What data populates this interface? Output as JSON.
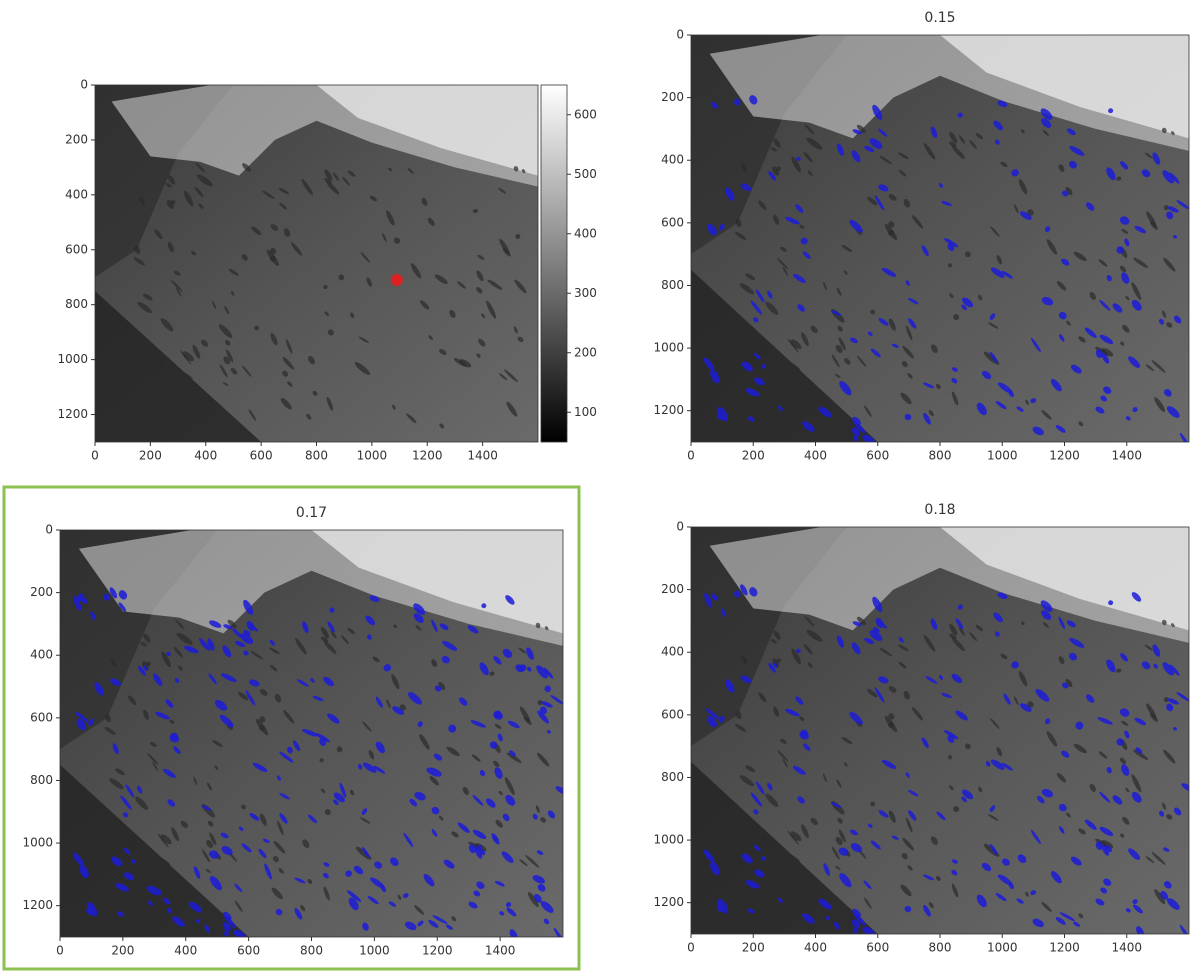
{
  "chart_data": [
    {
      "type": "image",
      "xlim": [
        0,
        1600
      ],
      "ylim": [
        1300,
        0
      ],
      "xticks": [
        0,
        200,
        400,
        600,
        800,
        1000,
        1200,
        1400
      ],
      "yticks": [
        0,
        200,
        400,
        600,
        800,
        1000,
        1200
      ],
      "colorbar": {
        "clim": [
          50,
          650
        ],
        "ticks": [
          100,
          200,
          300,
          400,
          500,
          600
        ]
      }
    },
    {
      "type": "image",
      "title": "0.15",
      "overlay_color": "#1c1cd8",
      "xlim": [
        0,
        1600
      ],
      "ylim": [
        1300,
        0
      ],
      "xticks": [
        0,
        200,
        400,
        600,
        800,
        1000,
        1200,
        1400
      ],
      "yticks": [
        0,
        200,
        400,
        600,
        800,
        1000,
        1200
      ]
    },
    {
      "type": "image",
      "title": "0.17",
      "overlay_color": "#1c1cd8",
      "xlim": [
        0,
        1600
      ],
      "ylim": [
        1300,
        0
      ],
      "xticks": [
        0,
        200,
        400,
        600,
        800,
        1000,
        1200,
        1400
      ],
      "yticks": [
        0,
        200,
        400,
        600,
        800,
        1000,
        1200
      ]
    },
    {
      "type": "image",
      "title": "0.18",
      "overlay_color": "#1c1cd8",
      "xlim": [
        0,
        1600
      ],
      "ylim": [
        1300,
        0
      ],
      "xticks": [
        0,
        200,
        400,
        600,
        800,
        1000,
        1200,
        1400
      ],
      "yticks": [
        0,
        200,
        400,
        600,
        800,
        1000,
        1200
      ]
    }
  ]
}
